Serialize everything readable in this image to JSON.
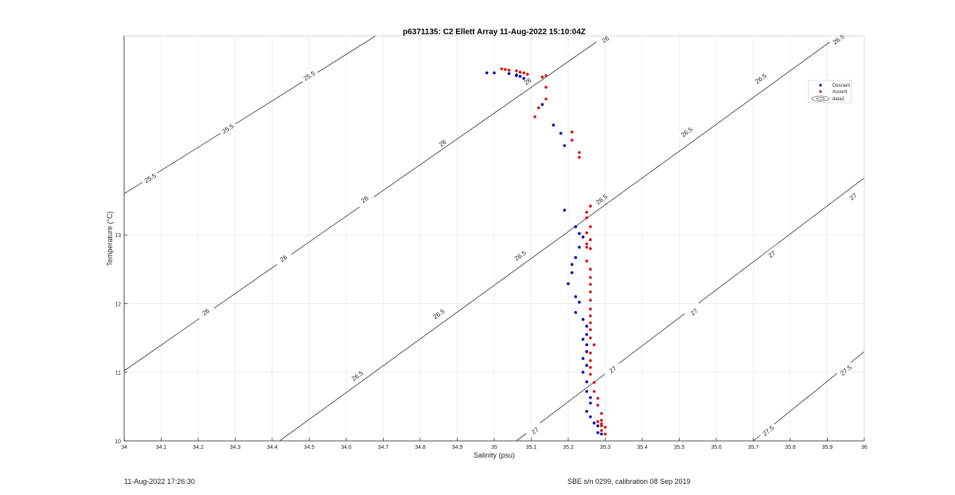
{
  "chart_data": {
    "type": "scatter",
    "title": "p6371135: C2 Ellett Array 11-Aug-2022 15:10:04Z",
    "xlabel": "Salinity (psu)",
    "ylabel": "Temperature (°C)",
    "xlim": [
      34,
      36
    ],
    "ylim": [
      10,
      15.9
    ],
    "x_ticks": [
      "34",
      "34.1",
      "34.2",
      "34.3",
      "34.4",
      "34.5",
      "34.6",
      "34.7",
      "34.8",
      "34.9",
      "35",
      "35.1",
      "35.2",
      "35.3",
      "35.4",
      "35.5",
      "35.6",
      "35.7",
      "35.8",
      "35.9",
      "36"
    ],
    "y_ticks": [
      "10",
      "11",
      "12",
      "13"
    ],
    "grid": true,
    "legend_position": "top-right",
    "legend": [
      "Descent",
      "Ascent",
      "data1"
    ],
    "series": [
      {
        "name": "Descent",
        "color": "#0000bb",
        "points": [
          [
            34.98,
            15.36
          ],
          [
            35.0,
            15.36
          ],
          [
            35.04,
            15.35
          ],
          [
            35.06,
            15.32
          ],
          [
            35.07,
            15.31
          ],
          [
            35.08,
            15.28
          ],
          [
            35.06,
            15.33
          ],
          [
            35.13,
            14.9
          ],
          [
            35.16,
            14.6
          ],
          [
            35.18,
            14.48
          ],
          [
            35.19,
            14.3
          ],
          [
            35.19,
            13.36
          ],
          [
            35.22,
            13.12
          ],
          [
            35.23,
            13.02
          ],
          [
            35.24,
            12.97
          ],
          [
            35.23,
            12.82
          ],
          [
            35.22,
            12.67
          ],
          [
            35.21,
            12.57
          ],
          [
            35.21,
            12.45
          ],
          [
            35.2,
            12.29
          ],
          [
            35.22,
            12.1
          ],
          [
            35.23,
            12.02
          ],
          [
            35.22,
            11.87
          ],
          [
            35.24,
            11.77
          ],
          [
            35.25,
            11.67
          ],
          [
            35.25,
            11.55
          ],
          [
            35.24,
            11.48
          ],
          [
            35.25,
            11.4
          ],
          [
            35.25,
            11.3
          ],
          [
            35.24,
            11.2
          ],
          [
            35.25,
            11.1
          ],
          [
            35.24,
            11.0
          ],
          [
            35.25,
            10.86
          ],
          [
            35.25,
            10.72
          ],
          [
            35.26,
            10.63
          ],
          [
            35.26,
            10.55
          ],
          [
            35.25,
            10.43
          ],
          [
            35.26,
            10.35
          ],
          [
            35.27,
            10.26
          ],
          [
            35.28,
            10.22
          ],
          [
            35.28,
            10.12
          ],
          [
            35.29,
            10.1
          ]
        ]
      },
      {
        "name": "Ascent",
        "color": "#dd1111",
        "points": [
          [
            35.02,
            15.42
          ],
          [
            35.03,
            15.41
          ],
          [
            35.04,
            15.4
          ],
          [
            35.06,
            15.39
          ],
          [
            35.07,
            15.37
          ],
          [
            35.08,
            15.36
          ],
          [
            35.09,
            15.34
          ],
          [
            35.13,
            15.3
          ],
          [
            35.14,
            15.32
          ],
          [
            35.14,
            15.15
          ],
          [
            35.14,
            14.98
          ],
          [
            35.12,
            14.85
          ],
          [
            35.11,
            14.72
          ],
          [
            35.21,
            14.5
          ],
          [
            35.21,
            14.38
          ],
          [
            35.23,
            14.2
          ],
          [
            35.23,
            14.13
          ],
          [
            35.26,
            13.42
          ],
          [
            35.25,
            13.33
          ],
          [
            35.25,
            13.25
          ],
          [
            35.26,
            13.12
          ],
          [
            35.25,
            13.03
          ],
          [
            35.26,
            12.93
          ],
          [
            35.25,
            12.87
          ],
          [
            35.25,
            12.82
          ],
          [
            35.26,
            12.8
          ],
          [
            35.25,
            12.62
          ],
          [
            35.26,
            12.5
          ],
          [
            35.26,
            12.38
          ],
          [
            35.26,
            12.28
          ],
          [
            35.26,
            12.17
          ],
          [
            35.26,
            12.05
          ],
          [
            35.26,
            11.92
          ],
          [
            35.26,
            11.82
          ],
          [
            35.26,
            11.72
          ],
          [
            35.26,
            11.62
          ],
          [
            35.26,
            11.5
          ],
          [
            35.27,
            11.4
          ],
          [
            35.26,
            11.28
          ],
          [
            35.26,
            11.17
          ],
          [
            35.26,
            11.07
          ],
          [
            35.26,
            10.97
          ],
          [
            35.27,
            10.85
          ],
          [
            35.27,
            10.72
          ],
          [
            35.28,
            10.62
          ],
          [
            35.28,
            10.52
          ],
          [
            35.29,
            10.4
          ],
          [
            35.29,
            10.3
          ],
          [
            35.29,
            10.22
          ],
          [
            35.29,
            10.15
          ],
          [
            35.3,
            10.1
          ],
          [
            35.28,
            10.28
          ],
          [
            35.29,
            10.25
          ],
          [
            35.3,
            10.2
          ]
        ]
      }
    ],
    "isopycnals": [
      {
        "label": "25.5",
        "start": [
          34.0,
          13.6
        ],
        "end": [
          34.68,
          15.9
        ],
        "labels_at": [
          [
            34.07,
            13.83
          ],
          [
            34.28,
            14.55
          ],
          [
            34.5,
            15.32
          ]
        ]
      },
      {
        "label": "26",
        "start": [
          34.0,
          11.02
        ],
        "end": [
          35.3,
          15.9
        ],
        "labels_at": [
          [
            34.22,
            11.88
          ],
          [
            34.43,
            12.66
          ],
          [
            34.65,
            13.52
          ],
          [
            34.86,
            14.34
          ],
          [
            35.09,
            15.24
          ],
          [
            35.3,
            15.85
          ]
        ]
      },
      {
        "label": "26.5",
        "start": [
          34.42,
          10.0
        ],
        "end": [
          35.93,
          15.9
        ],
        "labels_at": [
          [
            34.63,
            10.95
          ],
          [
            34.85,
            11.85
          ],
          [
            35.07,
            12.7
          ],
          [
            35.29,
            13.52
          ],
          [
            35.52,
            14.5
          ],
          [
            35.72,
            15.28
          ],
          [
            35.93,
            15.85
          ]
        ]
      },
      {
        "label": "27",
        "start": [
          35.06,
          10.0
        ],
        "end": [
          36.0,
          13.83
        ],
        "labels_at": [
          [
            35.11,
            10.15
          ],
          [
            35.32,
            11.04
          ],
          [
            35.54,
            11.88
          ],
          [
            35.75,
            12.72
          ],
          [
            35.97,
            13.56
          ]
        ]
      },
      {
        "label": "27.5",
        "start": [
          35.7,
          10.0
        ],
        "end": [
          36.0,
          11.3
        ],
        "labels_at": [
          [
            35.74,
            10.15
          ],
          [
            35.95,
            11.03
          ]
        ]
      }
    ]
  },
  "footer": {
    "left": "11-Aug-2022 17:26:30",
    "right": "SBE s/n 0299, calibration 08 Sep 2019"
  }
}
